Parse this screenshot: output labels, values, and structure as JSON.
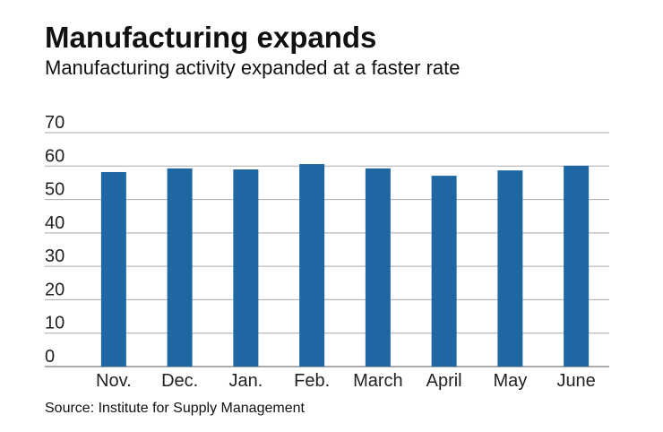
{
  "chart_data": {
    "type": "bar",
    "title": "Manufacturing expands",
    "subtitle": "Manufacturing activity expanded at a faster rate",
    "categories": [
      "Nov.",
      "Dec.",
      "Jan.",
      "Feb.",
      "March",
      "April",
      "May",
      "June"
    ],
    "values": [
      58.2,
      59.3,
      59.0,
      60.6,
      59.3,
      57.1,
      58.7,
      60.1
    ],
    "color": "#1f67a3",
    "ylim": [
      0,
      70
    ],
    "yticks": [
      0,
      10,
      20,
      30,
      40,
      50,
      60,
      70
    ],
    "grid": true,
    "source": "Source: Institute for Supply Management"
  }
}
